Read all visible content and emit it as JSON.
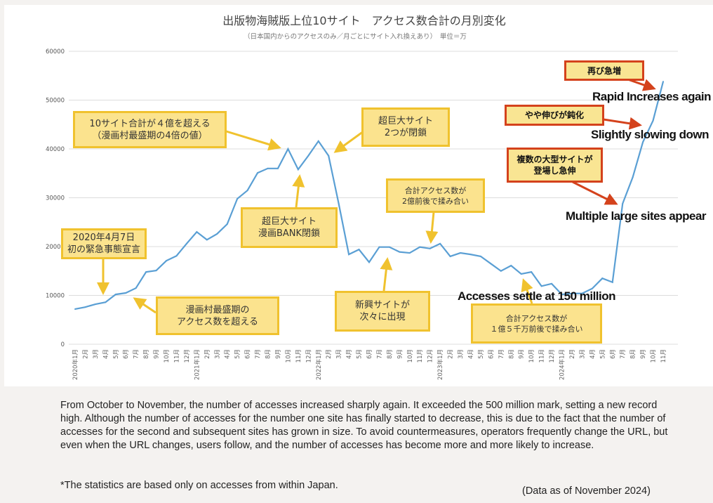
{
  "chart_data": {
    "type": "line",
    "title": "出版物海賊版上位10サイト　アクセス数合計の月別変化",
    "subtitle": "（日本国内からのアクセスのみ／月ごとにサイト入れ換えあり）　単位＝万",
    "xlabel": "",
    "ylabel": "",
    "ylim": [
      0,
      60000
    ],
    "yticks": [
      0,
      10000,
      20000,
      30000,
      40000,
      50000,
      60000
    ],
    "grid": true,
    "categories": [
      "2020年1月",
      "2月",
      "3月",
      "4月",
      "5月",
      "6月",
      "7月",
      "8月",
      "9月",
      "10月",
      "11月",
      "12月",
      "2021年1月",
      "2月",
      "3月",
      "4月",
      "5月",
      "6月",
      "7月",
      "8月",
      "9月",
      "10月",
      "11月",
      "12月",
      "2022年1月",
      "2月",
      "3月",
      "4月",
      "5月",
      "6月",
      "7月",
      "8月",
      "9月",
      "10月",
      "11月",
      "12月",
      "2023年1月",
      "2月",
      "3月",
      "4月",
      "5月",
      "6月",
      "7月",
      "8月",
      "9月",
      "10月",
      "11月",
      "12月",
      "2024年1月",
      "2月",
      "3月",
      "4月",
      "5月",
      "6月",
      "7月",
      "8月",
      "9月",
      "10月",
      "11月"
    ],
    "series": [
      {
        "name": "アクセス数合計",
        "color": "#5a9fd4",
        "values": [
          7200,
          7600,
          8200,
          8600,
          10200,
          10500,
          11500,
          14800,
          15100,
          17100,
          18100,
          20600,
          23000,
          21400,
          22600,
          24600,
          29800,
          31500,
          35100,
          36000,
          36000,
          40000,
          35800,
          38600,
          41600,
          38600,
          28800,
          18400,
          19400,
          16800,
          19900,
          19900,
          18900,
          18700,
          19900,
          19600,
          20600,
          18000,
          18700,
          18400,
          18000,
          16500,
          15000,
          16100,
          14400,
          14800,
          11900,
          12400,
          10200,
          10400,
          10400,
          11400,
          13500,
          12700,
          28800,
          34200,
          41400,
          45800,
          53800
        ]
      }
    ],
    "annotations": {
      "emergency": [
        "2020年4月7日",
        "初の緊急事態宣言"
      ],
      "mangamura": [
        "漫画村最盛期の",
        "アクセス数を超える"
      ],
      "over400m": [
        "10サイト合計が４億を超える",
        "（漫画村最盛期の4倍の値）"
      ],
      "bank": [
        "超巨大サイト",
        "漫画BANK閉鎖"
      ],
      "two_closed": [
        "超巨大サイト",
        "2つが閉鎖"
      ],
      "around200m": [
        "合計アクセス数が",
        "2億前後で揉み合い"
      ],
      "new_sites": [
        "新興サイトが",
        "次々に出現"
      ],
      "around150m": [
        "合計アクセス数が",
        "１億５千万前後で揉み合い"
      ],
      "settle_en": "Accesses settle at 150 million",
      "rapid_jp": "再び急増",
      "rapid_en": "Rapid Increases again",
      "slow_jp": "やや伸びが鈍化",
      "slow_en": "Slightly slowing down",
      "multi_jp": [
        "複数の大型サイトが",
        "登場し急伸"
      ],
      "multi_en": "Multiple large sites appear"
    }
  },
  "description": "From October to November, the number of accesses increased sharply again. It exceeded the 500 million mark, setting a new record high. Although the number of accesses for the number one site has finally started to decrease, this is due to the fact that the number of accesses for the second and subsequent sites has grown in size. To avoid countermeasures, operators frequently change the URL, but even when the URL changes, users follow, and the number of accesses has become more and more likely to increase.",
  "note": "*The statistics are based only on accesses from within Japan.",
  "as_of": "(Data as of November 2024)",
  "colors": {
    "line": "#5a9fd4",
    "yellow_border": "#f0c22e",
    "red_border": "#d4421c"
  }
}
